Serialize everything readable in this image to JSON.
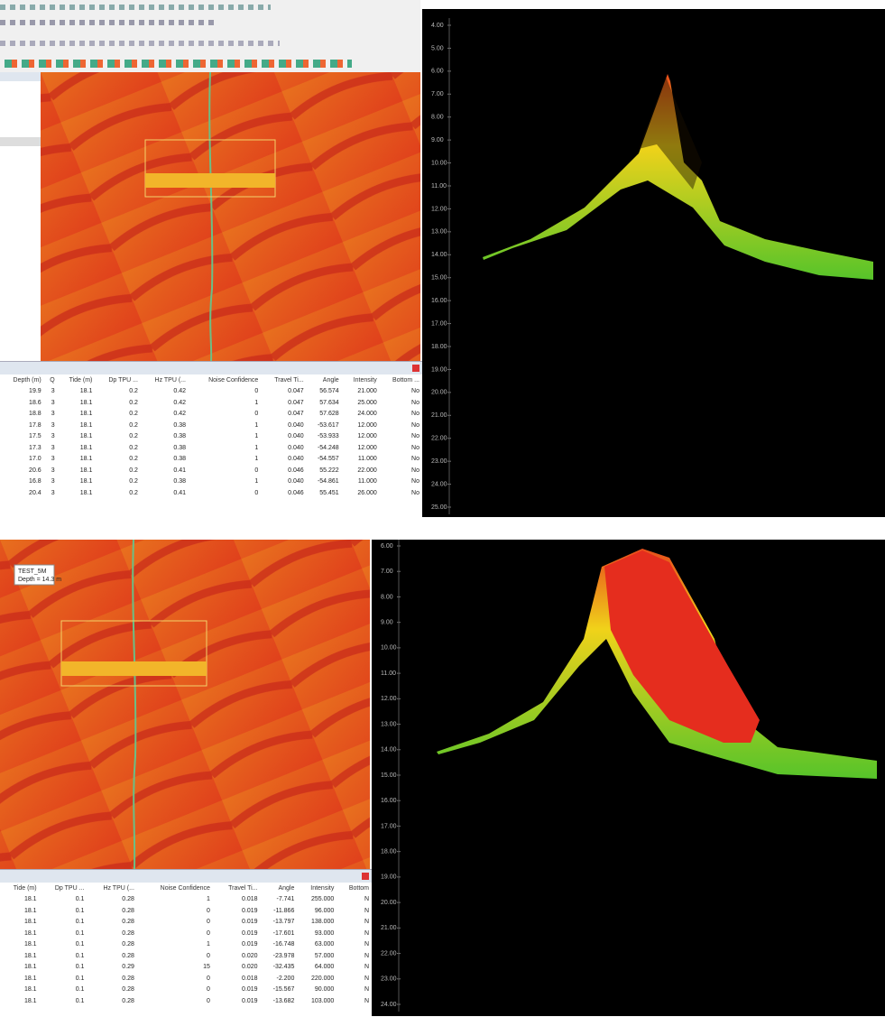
{
  "top": {
    "table": {
      "columns": [
        "Depth (m)",
        "Q",
        "Tide (m)",
        "Dp TPU ...",
        "Hz TPU (...",
        "Noise Confidence",
        "Travel Ti...",
        "Angle",
        "Intensity",
        "Bottom ..."
      ],
      "rows": [
        [
          "19.9",
          "3",
          "18.1",
          "0.2",
          "0.42",
          "0",
          "0.047",
          "56.574",
          "21.000",
          "No"
        ],
        [
          "18.6",
          "3",
          "18.1",
          "0.2",
          "0.42",
          "1",
          "0.047",
          "57.634",
          "25.000",
          "No"
        ],
        [
          "18.8",
          "3",
          "18.1",
          "0.2",
          "0.42",
          "0",
          "0.047",
          "57.628",
          "24.000",
          "No"
        ],
        [
          "17.8",
          "3",
          "18.1",
          "0.2",
          "0.38",
          "1",
          "0.040",
          "-53.617",
          "12.000",
          "No"
        ],
        [
          "17.5",
          "3",
          "18.1",
          "0.2",
          "0.38",
          "1",
          "0.040",
          "-53.933",
          "12.000",
          "No"
        ],
        [
          "17.3",
          "3",
          "18.1",
          "0.2",
          "0.38",
          "1",
          "0.040",
          "-54.248",
          "12.000",
          "No"
        ],
        [
          "17.0",
          "3",
          "18.1",
          "0.2",
          "0.38",
          "1",
          "0.040",
          "-54.557",
          "11.000",
          "No"
        ],
        [
          "20.6",
          "3",
          "18.1",
          "0.2",
          "0.41",
          "0",
          "0.046",
          "55.222",
          "22.000",
          "No"
        ],
        [
          "16.8",
          "3",
          "18.1",
          "0.2",
          "0.38",
          "1",
          "0.040",
          "-54.861",
          "11.000",
          "No"
        ],
        [
          "20.4",
          "3",
          "18.1",
          "0.2",
          "0.41",
          "0",
          "0.046",
          "55.451",
          "26.000",
          "No"
        ]
      ]
    },
    "profile": {
      "depth_labels": [
        "4.00",
        "5.00",
        "6.00",
        "7.00",
        "8.00",
        "9.00",
        "10.00",
        "11.00",
        "12.00",
        "13.00",
        "14.00",
        "15.00",
        "16.00",
        "17.00",
        "18.00",
        "19.00",
        "20.00",
        "21.00",
        "22.00",
        "23.00",
        "24.00",
        "25.00"
      ]
    }
  },
  "bottom": {
    "map": {
      "label": "TEST_5M",
      "depth": "Depth = 14.3 m"
    },
    "table": {
      "columns": [
        "Tide (m)",
        "Dp TPU ...",
        "Hz TPU (...",
        "Noise Confidence",
        "Travel Ti...",
        "Angle",
        "Intensity",
        "Bottom"
      ],
      "rows": [
        [
          "18.1",
          "0.1",
          "0.28",
          "1",
          "0.018",
          "-7.741",
          "255.000",
          "N"
        ],
        [
          "18.1",
          "0.1",
          "0.28",
          "0",
          "0.019",
          "-11.866",
          "96.000",
          "N"
        ],
        [
          "18.1",
          "0.1",
          "0.28",
          "0",
          "0.019",
          "-13.797",
          "138.000",
          "N"
        ],
        [
          "18.1",
          "0.1",
          "0.28",
          "0",
          "0.019",
          "-17.601",
          "93.000",
          "N"
        ],
        [
          "18.1",
          "0.1",
          "0.28",
          "1",
          "0.019",
          "-16.748",
          "63.000",
          "N"
        ],
        [
          "18.1",
          "0.1",
          "0.28",
          "0",
          "0.020",
          "-23.978",
          "57.000",
          "N"
        ],
        [
          "18.1",
          "0.1",
          "0.29",
          "15",
          "0.020",
          "-32.435",
          "64.000",
          "N"
        ],
        [
          "18.1",
          "0.1",
          "0.28",
          "0",
          "0.018",
          "-2.200",
          "220.000",
          "N"
        ],
        [
          "18.1",
          "0.1",
          "0.28",
          "0",
          "0.019",
          "-15.567",
          "90.000",
          "N"
        ],
        [
          "18.1",
          "0.1",
          "0.28",
          "0",
          "0.019",
          "-13.682",
          "103.000",
          "N"
        ]
      ]
    },
    "profile": {
      "depth_labels": [
        "6.00",
        "7.00",
        "8.00",
        "9.00",
        "10.00",
        "11.00",
        "12.00",
        "13.00",
        "14.00",
        "15.00",
        "16.00",
        "17.00",
        "18.00",
        "19.00",
        "20.00",
        "21.00",
        "22.00",
        "23.00",
        "24.00"
      ]
    }
  }
}
